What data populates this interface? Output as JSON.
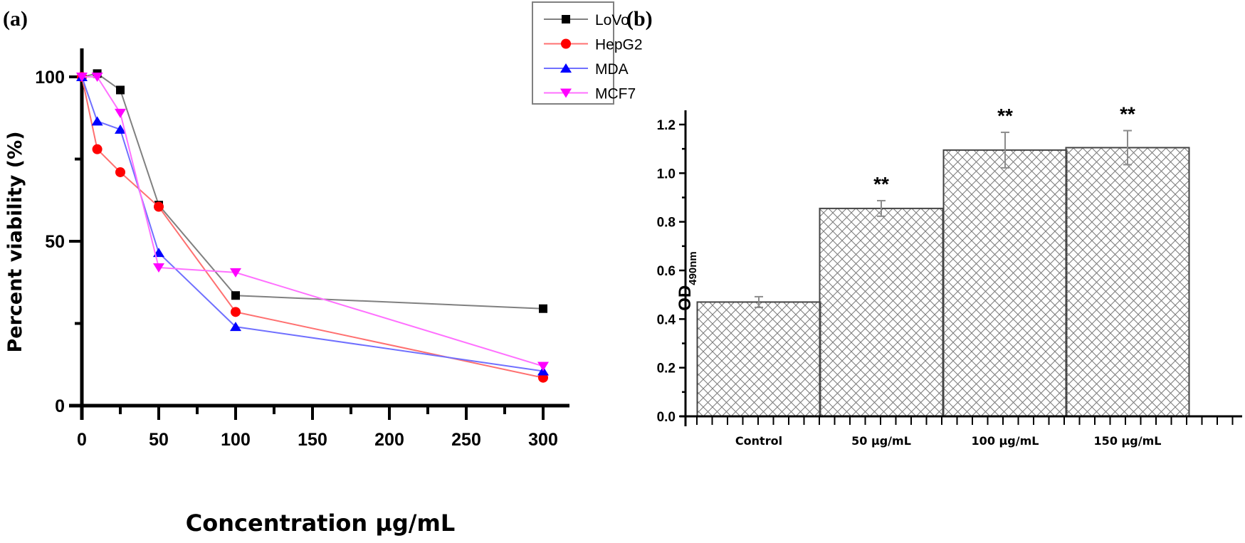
{
  "chart_data": [
    {
      "panel": "(a)",
      "type": "line",
      "title": "",
      "xlabel": "Concentration µg/mL",
      "ylabel": "Percent viability (%)",
      "x": [
        0,
        10,
        25,
        50,
        100,
        300
      ],
      "xlim": [
        0,
        320
      ],
      "ylim": [
        0,
        110
      ],
      "xticks": [
        "0",
        "50",
        "100",
        "150",
        "200",
        "250",
        "300"
      ],
      "yticks": [
        "0",
        "50",
        "100"
      ],
      "grid": false,
      "legend_position": "top-right",
      "series": [
        {
          "name": "LoVo",
          "color": "#000000",
          "line_color": "#808080",
          "marker": "square",
          "values": [
            100,
            101,
            96,
            61,
            33.5,
            29.5
          ]
        },
        {
          "name": "HepG2",
          "color": "#ff0000",
          "line_color": "#ff7070",
          "marker": "circle",
          "values": [
            100,
            78,
            71,
            60.5,
            28.5,
            8.5
          ]
        },
        {
          "name": "MDA",
          "color": "#0000ff",
          "line_color": "#7070ff",
          "marker": "triangle-up",
          "values": [
            100,
            86.5,
            84,
            46.5,
            24,
            10.5
          ]
        },
        {
          "name": "MCF7",
          "color": "#ff00ff",
          "line_color": "#ff70ff",
          "marker": "triangle-down",
          "values": [
            100,
            100,
            89,
            42,
            40.5,
            12
          ]
        }
      ]
    },
    {
      "panel": "(b)",
      "type": "bar",
      "title": "",
      "xlabel": "",
      "ylabel": "OD",
      "ylabel_subscript": "490nm",
      "categories": [
        "Control",
        "50 µg/mL",
        "100 µg/mL",
        "150 µg/mL"
      ],
      "values": [
        0.47,
        0.855,
        1.095,
        1.105
      ],
      "errors": [
        0.022,
        0.032,
        0.073,
        0.07
      ],
      "annotations": [
        "",
        "**",
        "**",
        "**"
      ],
      "ylim": [
        0,
        1.3
      ],
      "yticks": [
        "0.0",
        "0.2",
        "0.4",
        "0.6",
        "0.8",
        "1.0",
        "1.2"
      ],
      "grid": false,
      "fill_pattern": "crosshatch"
    }
  ],
  "labels": {
    "panel_a": "(a)",
    "panel_b": "(b)"
  }
}
